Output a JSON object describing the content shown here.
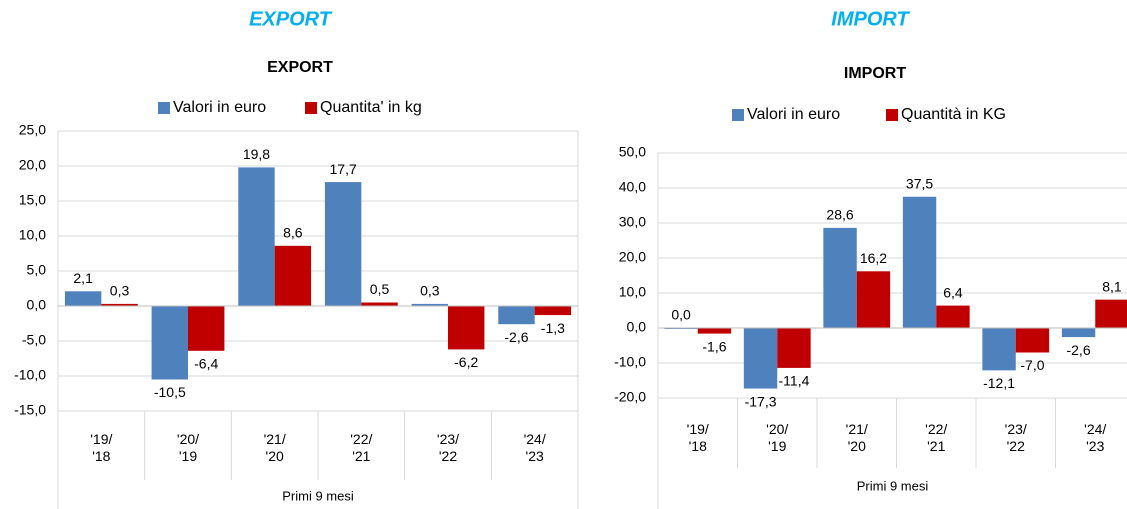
{
  "chart_data": [
    {
      "type": "bar",
      "heading": "EXPORT",
      "title": "EXPORT",
      "x_label": "Primi 9 mesi",
      "categories": [
        "'19/\n'18",
        "'20/\n'19",
        "'21/\n'20",
        "'22/\n'21",
        "'23/\n'22",
        "'24/\n'23"
      ],
      "series": [
        {
          "name": "Valori in euro",
          "color": "#4f81bd",
          "values": [
            2.1,
            -10.5,
            19.8,
            17.7,
            0.3,
            -2.6
          ],
          "value_labels": [
            "2,1",
            "-10,5",
            "19,8",
            "17,7",
            "0,3",
            "-2,6"
          ]
        },
        {
          "name": "Quantita' in kg",
          "color": "#c00000",
          "values": [
            0.3,
            -6.4,
            8.6,
            0.5,
            -6.2,
            -1.3
          ],
          "value_labels": [
            "0,3",
            "-6,4",
            "8,6",
            "0,5",
            "-6,2",
            "-1,3"
          ]
        }
      ],
      "ylim": [
        -15,
        25
      ],
      "yticks": [
        {
          "value": -15,
          "label": "-15,0"
        },
        {
          "value": -10,
          "label": "-10,0"
        },
        {
          "value": -5,
          "label": "-5,0"
        },
        {
          "value": 0,
          "label": "0,0"
        },
        {
          "value": 5,
          "label": "5,0"
        },
        {
          "value": 10,
          "label": "10,0"
        },
        {
          "value": 15,
          "label": "15,0"
        },
        {
          "value": 20,
          "label": "20,0"
        },
        {
          "value": 25,
          "label": "25,0"
        }
      ],
      "grid": true,
      "legend": "top"
    },
    {
      "type": "bar",
      "heading": "IMPORT",
      "title": "IMPORT",
      "x_label": "Primi 9 mesi",
      "categories": [
        "'19/\n'18",
        "'20/\n'19",
        "'21/\n'20",
        "'22/\n'21",
        "'23/\n'22",
        "'24/\n'23"
      ],
      "series": [
        {
          "name": "Valori in euro",
          "color": "#4f81bd",
          "values": [
            0.0,
            -17.3,
            28.6,
            37.5,
            -12.1,
            -2.6
          ],
          "value_labels": [
            "0,0",
            "-17,3",
            "28,6",
            "37,5",
            "-12,1",
            "-2,6"
          ]
        },
        {
          "name": "Quantità in KG",
          "color": "#c00000",
          "values": [
            -1.6,
            -11.4,
            16.2,
            6.4,
            -7.0,
            8.1
          ],
          "value_labels": [
            "-1,6",
            "-11,4",
            "16,2",
            "6,4",
            "-7,0",
            "8,1"
          ]
        }
      ],
      "ylim": [
        -20,
        50
      ],
      "yticks": [
        {
          "value": -20,
          "label": "-20,0"
        },
        {
          "value": -10,
          "label": "-10,0"
        },
        {
          "value": 0,
          "label": "0,0"
        },
        {
          "value": 10,
          "label": "10,0"
        },
        {
          "value": 20,
          "label": "20,0"
        },
        {
          "value": 30,
          "label": "30,0"
        },
        {
          "value": 40,
          "label": "40,0"
        },
        {
          "value": 50,
          "label": "50,0"
        }
      ],
      "grid": true,
      "legend": "top"
    }
  ]
}
